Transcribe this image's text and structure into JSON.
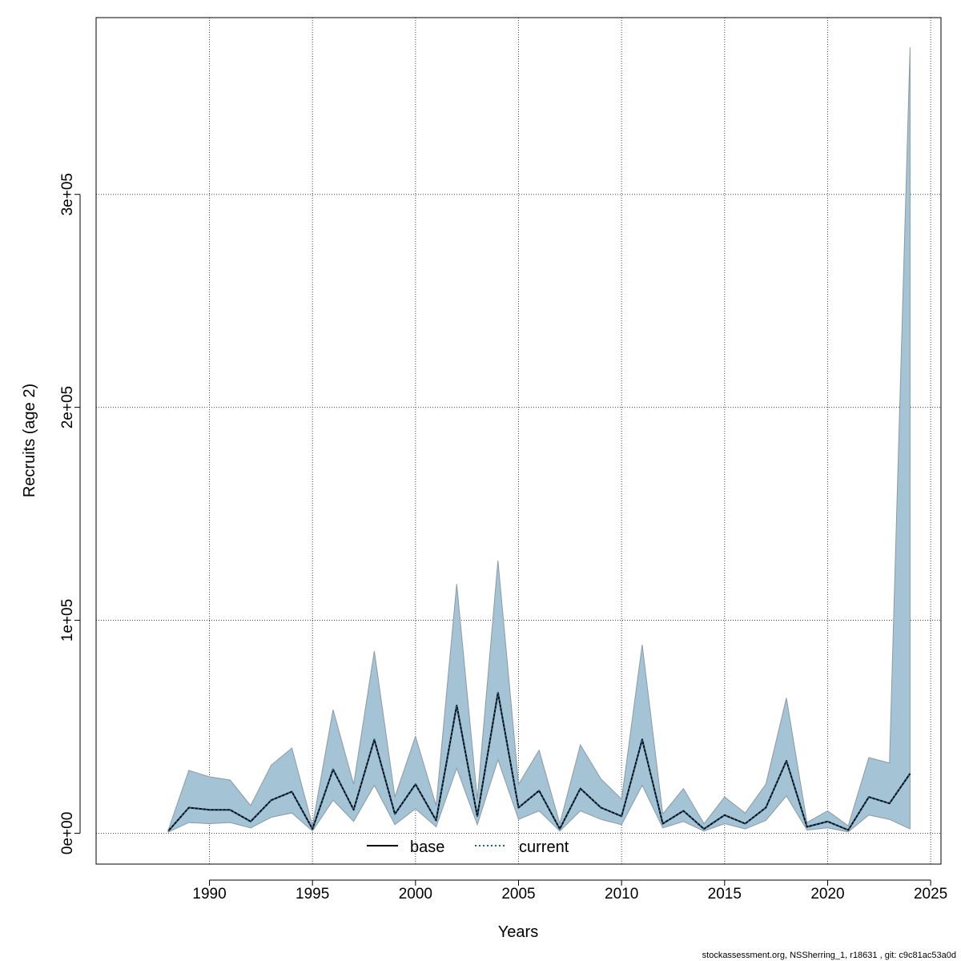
{
  "chart_data": {
    "type": "line",
    "xlabel": "Years",
    "ylabel": "Recruits (age 2)",
    "xlim": [
      1984.5,
      2025.5
    ],
    "ylim": [
      -14500,
      383000
    ],
    "x_ticks": [
      1990,
      1995,
      2000,
      2005,
      2010,
      2015,
      2020,
      2025
    ],
    "x_tick_labels": [
      "1990",
      "1995",
      "2000",
      "2005",
      "2010",
      "2015",
      "2020",
      "2025"
    ],
    "y_ticks": [
      0,
      100000,
      200000,
      300000
    ],
    "y_tick_labels": [
      "0e+00",
      "1e+05",
      "2e+05",
      "3e+05"
    ],
    "grid": true,
    "legend": {
      "placement": "bottom-center",
      "entries": [
        {
          "name": "base",
          "style": "solid",
          "color": "#000000"
        },
        {
          "name": "current",
          "style": "dotted",
          "color": "#1f5f8b"
        }
      ]
    },
    "x": [
      1988,
      1989,
      1990,
      1991,
      1992,
      1993,
      1994,
      1995,
      1996,
      1997,
      1998,
      1999,
      2000,
      2001,
      2002,
      2003,
      2004,
      2005,
      2006,
      2007,
      2008,
      2009,
      2010,
      2011,
      2012,
      2013,
      2014,
      2015,
      2016,
      2017,
      2018,
      2019,
      2020,
      2021,
      2022,
      2023,
      2024
    ],
    "series": [
      {
        "name": "base",
        "values": [
          1000,
          12000,
          11000,
          11000,
          5500,
          15500,
          19500,
          2000,
          30000,
          11000,
          44000,
          9000,
          23000,
          6000,
          60000,
          8000,
          66000,
          12000,
          20000,
          2000,
          21000,
          12000,
          8000,
          44000,
          4500,
          10500,
          2000,
          8500,
          4500,
          12000,
          34000,
          3000,
          5500,
          1500,
          17000,
          14000,
          28000
        ]
      },
      {
        "name": "current",
        "values": [
          1000,
          12000,
          11000,
          11000,
          5500,
          15500,
          19500,
          2000,
          30000,
          11000,
          44000,
          9000,
          23000,
          6000,
          60000,
          8000,
          66000,
          12000,
          20000,
          2000,
          21000,
          12000,
          8000,
          44000,
          4500,
          10500,
          2000,
          8500,
          4500,
          12000,
          34000,
          3000,
          5500,
          1500,
          17000,
          14000,
          28000
        ]
      }
    ],
    "confidence_band": {
      "upper": [
        1500,
        29500,
        26500,
        25000,
        13000,
        32000,
        40000,
        3500,
        58000,
        23000,
        85500,
        17000,
        45500,
        13000,
        117000,
        16000,
        128000,
        23000,
        39000,
        4500,
        41500,
        25500,
        16000,
        88500,
        9000,
        21000,
        4500,
        17000,
        9500,
        23000,
        63500,
        5000,
        10500,
        3500,
        35500,
        33000,
        369000
      ],
      "lower": [
        500,
        5000,
        4500,
        5000,
        2500,
        7500,
        9500,
        1000,
        15500,
        5500,
        22500,
        4000,
        11500,
        3000,
        30500,
        4000,
        34500,
        6500,
        10500,
        1000,
        10500,
        6500,
        4000,
        22500,
        2500,
        5500,
        1000,
        4500,
        2000,
        6000,
        17500,
        1500,
        2500,
        600,
        8500,
        6500,
        2000
      ],
      "color": "#a4c4d5",
      "edge_color": "#8a9aa4"
    }
  },
  "footer": "stockassessment.org, NSSherring_1, r18631 , git: c9c81ac53a0d"
}
